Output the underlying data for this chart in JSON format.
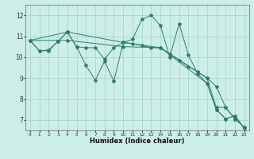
{
  "xlabel": "Humidex (Indice chaleur)",
  "bg_color": "#cceee8",
  "grid_color": "#aad4ce",
  "line_color": "#2d7d6e",
  "xlim": [
    -0.5,
    23.5
  ],
  "ylim": [
    6.5,
    12.5
  ],
  "yticks": [
    7,
    8,
    9,
    10,
    11,
    12
  ],
  "xticks": [
    0,
    1,
    2,
    3,
    4,
    5,
    6,
    7,
    8,
    9,
    10,
    11,
    12,
    13,
    14,
    15,
    16,
    17,
    18,
    19,
    20,
    21,
    22,
    23
  ],
  "series": [
    {
      "x": [
        0,
        1,
        2,
        3,
        4,
        5,
        6,
        7,
        8,
        9,
        10,
        11,
        12,
        13,
        14,
        15,
        16,
        17,
        18,
        19,
        20,
        21,
        22,
        23
      ],
      "y": [
        10.8,
        10.3,
        10.3,
        10.75,
        11.2,
        10.5,
        9.6,
        8.9,
        9.8,
        8.85,
        10.7,
        10.85,
        11.8,
        12.0,
        11.5,
        10.0,
        11.6,
        10.1,
        9.2,
        8.75,
        7.5,
        7.05,
        7.2,
        6.6
      ]
    },
    {
      "x": [
        0,
        1,
        2,
        3,
        4,
        5,
        6,
        7,
        8,
        9,
        10,
        11,
        12,
        13,
        14,
        15,
        16,
        17,
        18,
        19,
        20,
        21,
        22,
        23
      ],
      "y": [
        10.8,
        10.3,
        10.35,
        10.75,
        11.2,
        10.5,
        10.45,
        10.45,
        9.9,
        10.45,
        10.7,
        10.65,
        10.55,
        10.45,
        10.45,
        10.15,
        9.85,
        9.55,
        9.3,
        9.0,
        8.6,
        7.6,
        7.05,
        6.65
      ]
    },
    {
      "x": [
        0,
        4,
        10,
        14,
        19,
        20,
        21,
        22,
        23
      ],
      "y": [
        10.8,
        11.2,
        10.7,
        10.45,
        8.75,
        7.5,
        7.05,
        7.2,
        6.6
      ]
    },
    {
      "x": [
        0,
        4,
        10,
        14,
        19,
        20,
        21,
        22,
        23
      ],
      "y": [
        10.8,
        10.8,
        10.5,
        10.45,
        9.0,
        7.6,
        7.6,
        7.05,
        6.65
      ]
    }
  ]
}
